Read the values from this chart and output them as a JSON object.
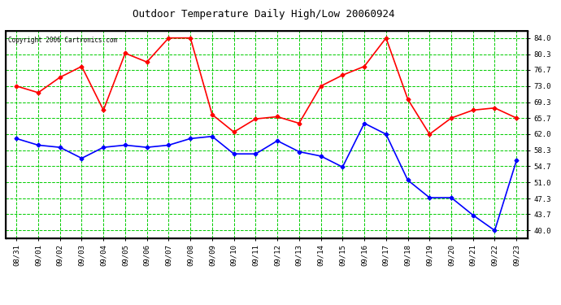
{
  "title": "Outdoor Temperature Daily High/Low 20060924",
  "copyright": "Copyright 2006 Cartronics.com",
  "dates": [
    "08/31",
    "09/01",
    "09/02",
    "09/03",
    "09/04",
    "09/05",
    "09/06",
    "09/07",
    "09/08",
    "09/09",
    "09/10",
    "09/11",
    "09/12",
    "09/13",
    "09/14",
    "09/15",
    "09/16",
    "09/17",
    "09/18",
    "09/19",
    "09/20",
    "09/21",
    "09/22",
    "09/23"
  ],
  "high_temps": [
    73.0,
    71.5,
    75.0,
    77.5,
    67.5,
    80.5,
    78.5,
    84.0,
    84.0,
    66.5,
    62.5,
    65.5,
    66.0,
    64.5,
    73.0,
    75.5,
    77.5,
    84.0,
    70.0,
    62.0,
    65.7,
    67.5,
    68.0,
    65.7
  ],
  "low_temps": [
    61.0,
    59.5,
    59.0,
    56.5,
    59.0,
    59.5,
    59.0,
    59.5,
    61.0,
    61.5,
    57.5,
    57.5,
    60.5,
    58.0,
    57.0,
    54.5,
    64.5,
    62.0,
    51.5,
    47.5,
    47.5,
    43.5,
    40.0,
    56.0
  ],
  "high_color": "#ff0000",
  "low_color": "#0000ff",
  "bg_color": "#ffffff",
  "plot_bg_color": "#ffffff",
  "grid_color": "#00cc00",
  "border_color": "#000000",
  "title_color": "#000000",
  "copyright_color": "#000000",
  "yticks": [
    40.0,
    43.7,
    47.3,
    51.0,
    54.7,
    58.3,
    62.0,
    65.7,
    69.3,
    73.0,
    76.7,
    80.3,
    84.0
  ],
  "ylim": [
    38.3,
    85.7
  ],
  "marker": "D",
  "markersize": 2.5,
  "linewidth": 1.2,
  "title_fontsize": 9,
  "tick_fontsize": 6.5
}
